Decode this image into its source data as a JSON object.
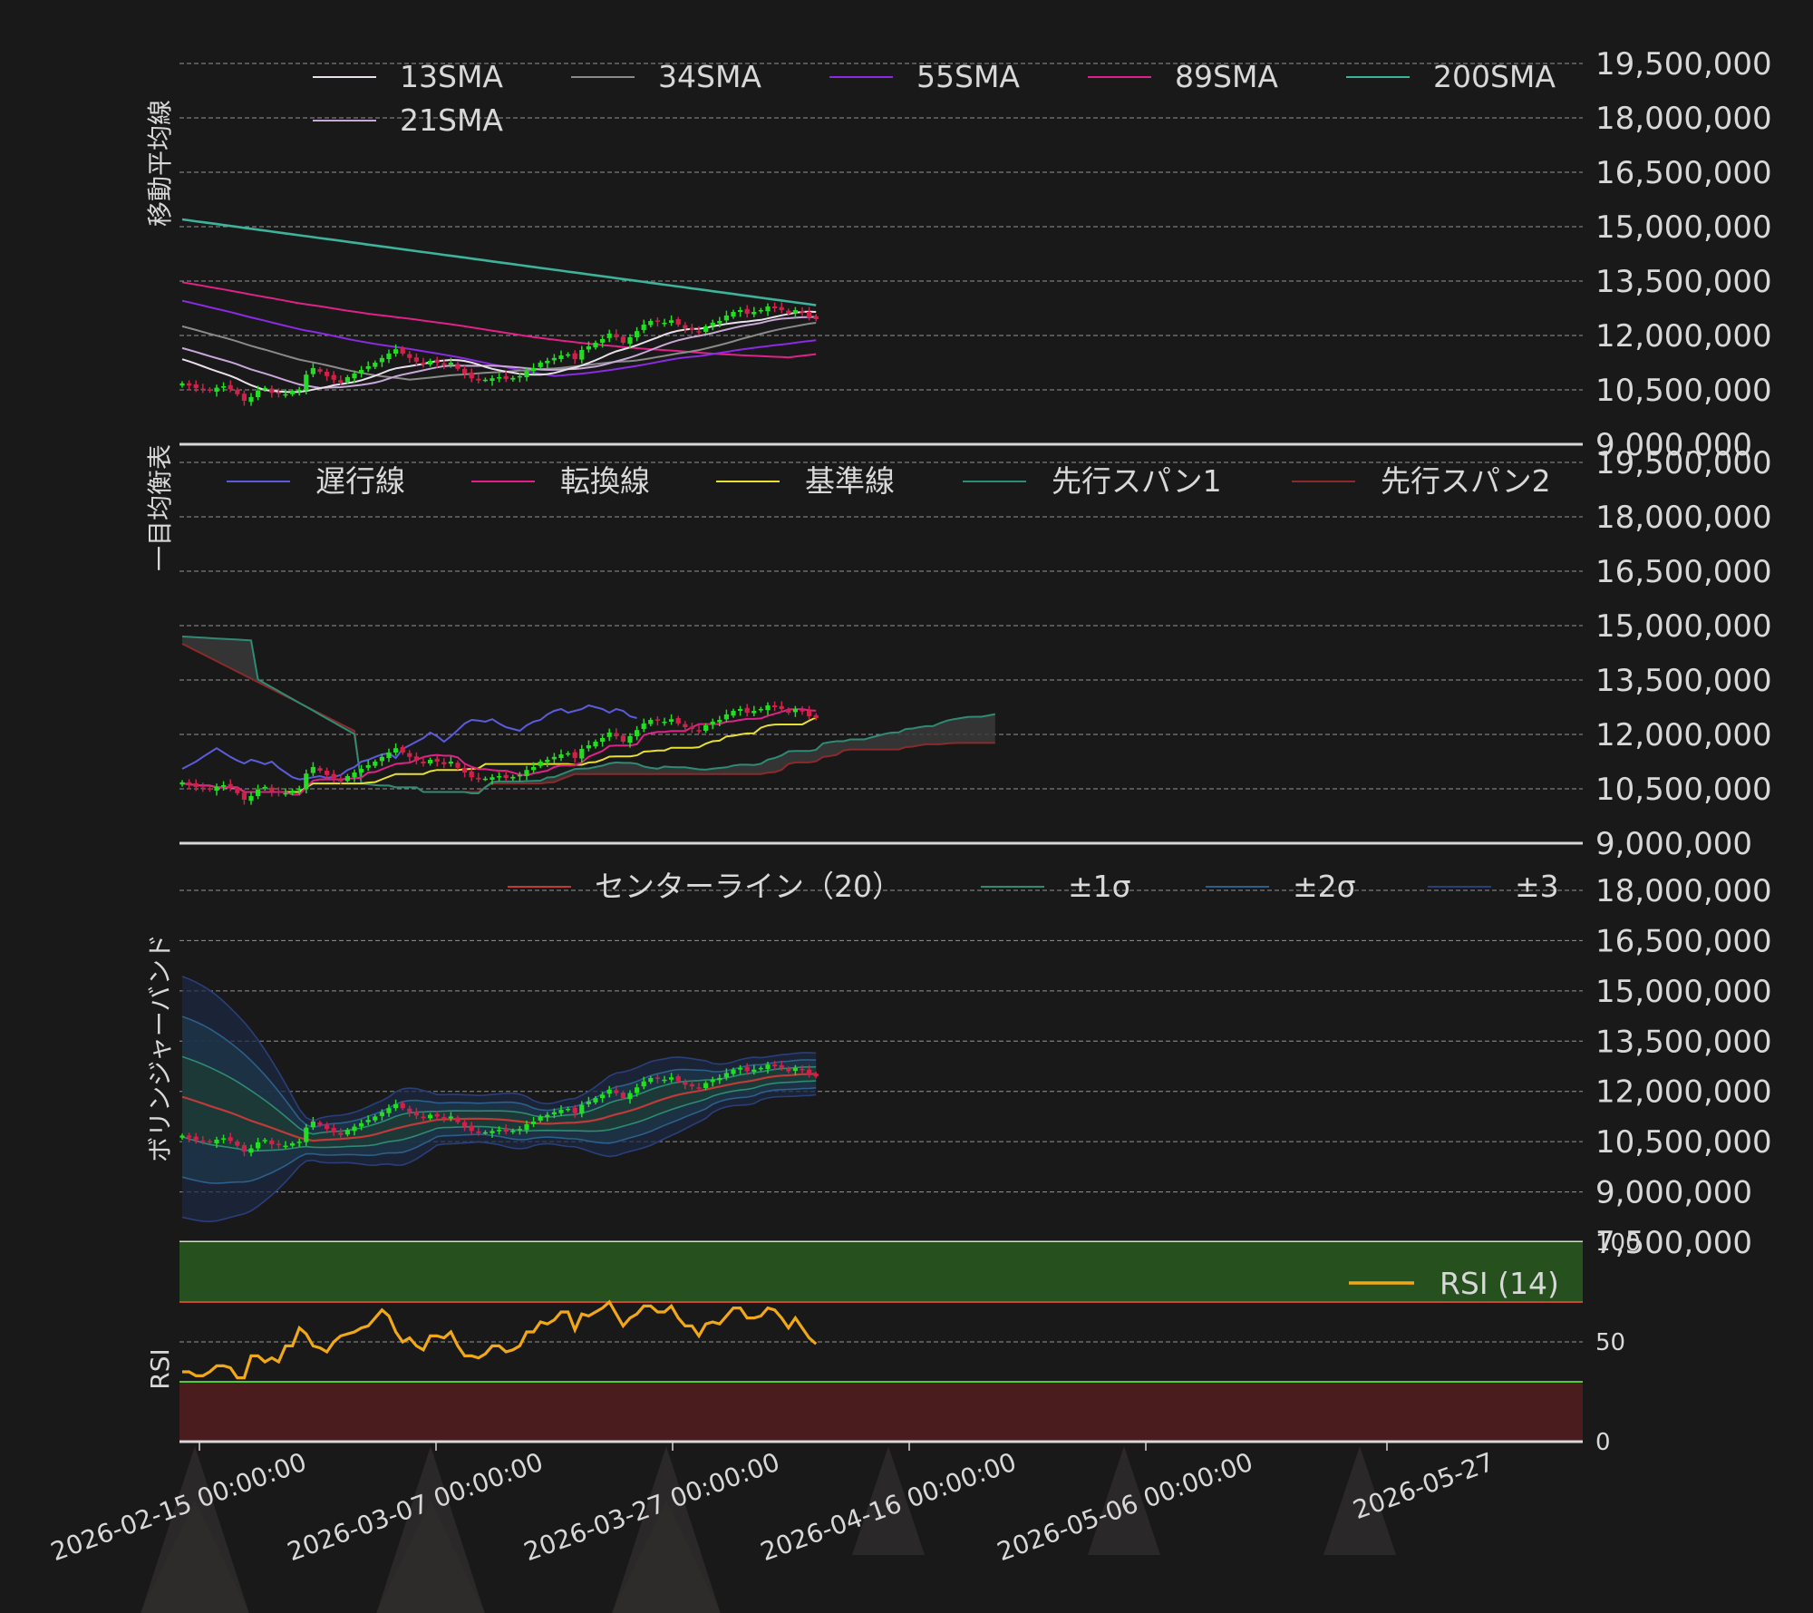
{
  "chart_data": [
    {
      "id": "ma",
      "type": "line",
      "ylabel": "移動平均線",
      "ylim": [
        9000000,
        19500000
      ],
      "yticks": [
        "19,500,000",
        "18,000,000",
        "16,500,000",
        "15,000,000",
        "13,500,000",
        "12,000,000",
        "10,500,000",
        "9,000,000"
      ],
      "legend": [
        {
          "name": "13SMA",
          "color": "#eae0ea"
        },
        {
          "name": "34SMA",
          "color": "#8a8a8a"
        },
        {
          "name": "55SMA",
          "color": "#8a2be2"
        },
        {
          "name": "89SMA",
          "color": "#e0218a"
        },
        {
          "name": "200SMA",
          "color": "#3cb39a"
        },
        {
          "name": "21SMA",
          "color": "#c8a8d8"
        }
      ]
    },
    {
      "id": "ichimoku",
      "type": "line",
      "ylabel": "一目均衡表",
      "ylim": [
        9000000,
        19500000
      ],
      "yticks": [
        "19,500,000",
        "18,000,000",
        "16,500,000",
        "15,000,000",
        "13,500,000",
        "12,000,000",
        "10,500,000",
        "9,000,000"
      ],
      "legend": [
        {
          "name": "遅行線",
          "color": "#5b5bdc"
        },
        {
          "name": "転換線",
          "color": "#e0218a"
        },
        {
          "name": "基準線",
          "color": "#e8e030"
        },
        {
          "name": "先行スパン1",
          "color": "#2e8b74"
        },
        {
          "name": "先行スパン2",
          "color": "#8b2a2a"
        }
      ]
    },
    {
      "id": "bollinger",
      "type": "line",
      "ylabel": "ボリンジャーバンド",
      "ylim": [
        7500000,
        18000000
      ],
      "yticks": [
        "18,000,000",
        "16,500,000",
        "15,000,000",
        "13,500,000",
        "12,000,000",
        "10,500,000",
        "9,000,000",
        "7,500,000"
      ],
      "legend": [
        {
          "name": "センターライン（20）",
          "color": "#c03a3a"
        },
        {
          "name": "±1σ",
          "color": "#2e8b74"
        },
        {
          "name": "±2σ",
          "color": "#2c5f8a"
        },
        {
          "name": "±3",
          "color": "#2a3f7a"
        }
      ]
    },
    {
      "id": "rsi",
      "type": "line",
      "ylabel": "RSI",
      "ylim": [
        0,
        100
      ],
      "yticks": [
        "100",
        "50",
        "0"
      ],
      "overbought": 70,
      "oversold": 30,
      "legend": [
        {
          "name": "RSI (14)",
          "color": "#f0a818"
        }
      ],
      "series": [
        {
          "name": "RSI (14)",
          "values": [
            35,
            35,
            33,
            33,
            35,
            38,
            38,
            37,
            32,
            32,
            43,
            43,
            40,
            42,
            40,
            48,
            48,
            57,
            54,
            48,
            47,
            45,
            50,
            53,
            54,
            55,
            57,
            58,
            62,
            66,
            63,
            55,
            50,
            52,
            48,
            46,
            53,
            53,
            52,
            55,
            48,
            43,
            43,
            42,
            44,
            48,
            48,
            45,
            46,
            48,
            55,
            55,
            60,
            59,
            61,
            65,
            65,
            56,
            64,
            63,
            65,
            67,
            70,
            64,
            58,
            62,
            64,
            68,
            68,
            65,
            65,
            68,
            62,
            58,
            58,
            53,
            59,
            60,
            59,
            63,
            67,
            67,
            62,
            62,
            63,
            67,
            66,
            62,
            57,
            62,
            57,
            52,
            49
          ]
        }
      ]
    }
  ],
  "price_series": {
    "name": "close",
    "dates_start": "2026-02-13",
    "close": [
      10680000,
      10620000,
      10550000,
      10500000,
      10480000,
      10560000,
      10600000,
      10520000,
      10380000,
      10200000,
      10300000,
      10480000,
      10550000,
      10420000,
      10400000,
      10380000,
      10450000,
      10500000,
      10920000,
      11100000,
      11000000,
      10880000,
      10780000,
      10700000,
      10850000,
      10950000,
      11050000,
      11150000,
      11250000,
      11380000,
      11500000,
      11620000,
      11500000,
      11380000,
      11280000,
      11200000,
      11300000,
      11250000,
      11180000,
      11250000,
      11080000,
      10950000,
      10820000,
      10760000,
      10780000,
      10820000,
      10850000,
      10800000,
      10830000,
      10880000,
      11020000,
      11100000,
      11250000,
      11300000,
      11380000,
      11450000,
      11480000,
      11350000,
      11600000,
      11700000,
      11800000,
      11900000,
      12050000,
      11950000,
      11800000,
      11950000,
      12120000,
      12300000,
      12400000,
      12380000,
      12350000,
      12420000,
      12300000,
      12200000,
      12150000,
      12100000,
      12250000,
      12350000,
      12400000,
      12550000,
      12650000,
      12700000,
      12600000,
      12650000,
      12700000,
      12800000,
      12750000,
      12700000,
      12600000,
      12700000,
      12650000,
      12500000,
      12450000
    ]
  },
  "x_axis": {
    "ticks": [
      "2026-02-15 00:00:00",
      "2026-03-07 00:00:00",
      "2026-03-27 00:00:00",
      "2026-04-16 00:00:00",
      "2026-05-06 00:00:00",
      "2026-05-27"
    ]
  },
  "colors": {
    "up": "#22dd22",
    "down": "#d0214a",
    "background": "#191919",
    "text": "#d8d8d8"
  }
}
